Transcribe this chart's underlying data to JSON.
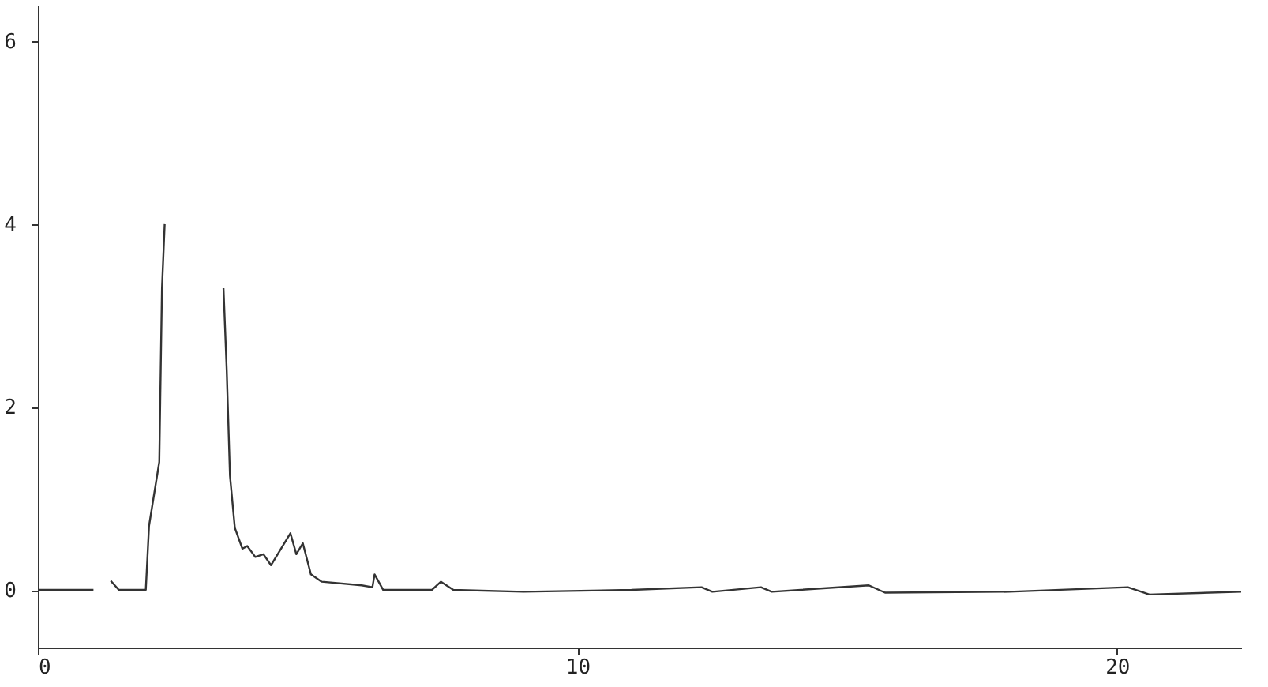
{
  "chart_data": {
    "type": "line",
    "x": [
      0,
      0.9,
      1.03,
      1.21,
      1.26,
      1.35,
      1.5,
      2.0,
      2.06,
      2.25,
      2.3,
      2.35,
      2.45,
      3.4,
      3.44,
      3.5,
      3.56,
      3.65,
      3.79,
      3.88,
      4.03,
      4.18,
      4.32,
      4.68,
      4.79,
      4.91,
      5.06,
      5.26,
      6.0,
      6.2,
      6.24,
      6.4,
      7.3,
      7.47,
      7.7,
      9,
      11,
      12.3,
      12.5,
      13.4,
      13.6,
      15.4,
      15.7,
      18,
      20.2,
      20.6,
      22.3
    ],
    "series": [
      {
        "color": "#333333",
        "values": [
          0,
          0,
          0,
          null,
          null,
          0.1,
          0,
          0,
          0.7,
          1.4,
          3.3,
          4.0,
          null,
          null,
          3.3,
          2.4,
          1.25,
          0.68,
          0.45,
          0.48,
          0.36,
          0.39,
          0.27,
          0.62,
          0.39,
          0.51,
          0.17,
          0.09,
          0.05,
          0.03,
          0.17,
          0,
          0,
          0.09,
          0,
          -0.02,
          0,
          0.03,
          -0.02,
          0.03,
          -0.02,
          0.05,
          -0.03,
          -0.02,
          0.03,
          -0.05,
          -0.02
        ]
      }
    ],
    "xlim": [
      0,
      22.3
    ],
    "xticks": [
      0,
      10,
      20
    ],
    "ylim": [
      -0.63,
      6.4
    ],
    "yticks": [
      0,
      2,
      4,
      6
    ],
    "grid": false,
    "marker": "none",
    "line_style": "solid"
  }
}
